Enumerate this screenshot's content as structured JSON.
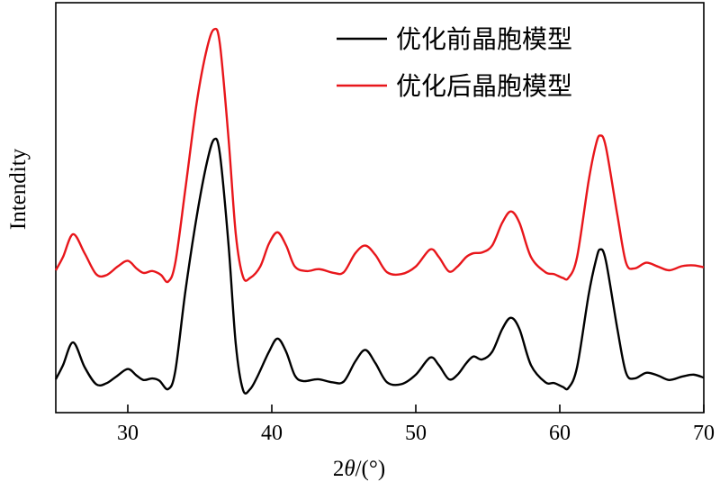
{
  "chart_data": {
    "type": "line",
    "title": "",
    "xlabel_prefix": "2",
    "xlabel_theta": "θ",
    "xlabel_suffix": "/(°)",
    "ylabel": "Intendity",
    "xlim": [
      25,
      70
    ],
    "xticks": [
      30,
      40,
      50,
      60,
      70
    ],
    "y_ticks_shown": false,
    "grid": false,
    "legend_position": "top-right",
    "series": [
      {
        "name": "优化前晶胞模型",
        "color": "#000000",
        "points": [
          [
            25.0,
            8.8
          ],
          [
            25.5,
            12.5
          ],
          [
            26.2,
            18.5
          ],
          [
            27.0,
            12.0
          ],
          [
            27.8,
            7.5
          ],
          [
            28.5,
            7.7
          ],
          [
            29.2,
            9.5
          ],
          [
            30.0,
            11.5
          ],
          [
            30.6,
            9.8
          ],
          [
            31.1,
            8.6
          ],
          [
            31.7,
            9.0
          ],
          [
            32.2,
            8.4
          ],
          [
            32.8,
            6.2
          ],
          [
            33.3,
            11.0
          ],
          [
            34.0,
            32.0
          ],
          [
            34.8,
            52.0
          ],
          [
            35.5,
            66.0
          ],
          [
            36.0,
            72.0
          ],
          [
            36.4,
            68.0
          ],
          [
            37.0,
            44.0
          ],
          [
            37.5,
            18.0
          ],
          [
            38.0,
            6.0
          ],
          [
            38.5,
            6.2
          ],
          [
            39.0,
            9.5
          ],
          [
            39.8,
            16.0
          ],
          [
            40.4,
            19.5
          ],
          [
            41.0,
            16.0
          ],
          [
            41.6,
            9.8
          ],
          [
            42.2,
            8.3
          ],
          [
            43.2,
            8.8
          ],
          [
            44.2,
            8.0
          ],
          [
            45.0,
            8.2
          ],
          [
            45.8,
            13.5
          ],
          [
            46.5,
            16.5
          ],
          [
            47.2,
            13.0
          ],
          [
            48.0,
            8.0
          ],
          [
            49.0,
            7.5
          ],
          [
            50.0,
            10.0
          ],
          [
            51.0,
            14.5
          ],
          [
            51.6,
            12.5
          ],
          [
            52.3,
            8.8
          ],
          [
            52.9,
            10.0
          ],
          [
            53.5,
            13.0
          ],
          [
            54.0,
            14.8
          ],
          [
            54.6,
            14.0
          ],
          [
            55.3,
            16.0
          ],
          [
            56.0,
            22.0
          ],
          [
            56.6,
            25.0
          ],
          [
            57.2,
            22.0
          ],
          [
            58.0,
            12.5
          ],
          [
            59.0,
            8.0
          ],
          [
            59.6,
            7.8
          ],
          [
            60.2,
            6.8
          ],
          [
            60.6,
            6.5
          ],
          [
            61.2,
            12.0
          ],
          [
            62.0,
            31.0
          ],
          [
            62.5,
            40.0
          ],
          [
            62.8,
            43.0
          ],
          [
            63.2,
            40.0
          ],
          [
            64.0,
            22.0
          ],
          [
            64.6,
            10.5
          ],
          [
            65.2,
            9.0
          ],
          [
            66.0,
            10.5
          ],
          [
            66.8,
            9.8
          ],
          [
            67.6,
            8.6
          ],
          [
            68.5,
            9.5
          ],
          [
            69.3,
            10.0
          ],
          [
            70.0,
            9.2
          ]
        ]
      },
      {
        "name": "优化后晶胞模型",
        "color": "#e8161b",
        "points": [
          [
            25.0,
            37.5
          ],
          [
            25.5,
            41.0
          ],
          [
            26.2,
            47.0
          ],
          [
            27.0,
            42.0
          ],
          [
            27.8,
            36.5
          ],
          [
            28.5,
            36.2
          ],
          [
            29.3,
            38.5
          ],
          [
            30.0,
            40.0
          ],
          [
            30.6,
            38.0
          ],
          [
            31.1,
            36.8
          ],
          [
            31.7,
            37.3
          ],
          [
            32.3,
            36.3
          ],
          [
            32.8,
            34.5
          ],
          [
            33.3,
            39.5
          ],
          [
            34.0,
            59.0
          ],
          [
            34.8,
            82.0
          ],
          [
            35.5,
            96.0
          ],
          [
            36.0,
            101.0
          ],
          [
            36.4,
            97.0
          ],
          [
            37.0,
            72.0
          ],
          [
            37.5,
            47.0
          ],
          [
            38.0,
            35.8
          ],
          [
            38.5,
            35.5
          ],
          [
            39.2,
            38.5
          ],
          [
            39.8,
            44.5
          ],
          [
            40.4,
            47.5
          ],
          [
            41.0,
            44.0
          ],
          [
            41.6,
            38.5
          ],
          [
            42.4,
            37.3
          ],
          [
            43.3,
            37.8
          ],
          [
            44.3,
            36.8
          ],
          [
            45.0,
            37.0
          ],
          [
            45.8,
            42.0
          ],
          [
            46.5,
            44.0
          ],
          [
            47.2,
            41.5
          ],
          [
            48.0,
            37.0
          ],
          [
            49.0,
            36.5
          ],
          [
            50.0,
            38.5
          ],
          [
            51.0,
            43.0
          ],
          [
            51.6,
            41.0
          ],
          [
            52.3,
            37.2
          ],
          [
            52.9,
            38.5
          ],
          [
            53.5,
            41.0
          ],
          [
            54.0,
            42.0
          ],
          [
            54.6,
            42.2
          ],
          [
            55.3,
            44.0
          ],
          [
            56.0,
            50.0
          ],
          [
            56.6,
            53.0
          ],
          [
            57.2,
            50.0
          ],
          [
            58.0,
            41.0
          ],
          [
            59.0,
            37.0
          ],
          [
            59.6,
            36.5
          ],
          [
            60.2,
            35.5
          ],
          [
            60.6,
            35.5
          ],
          [
            61.2,
            41.0
          ],
          [
            62.0,
            61.0
          ],
          [
            62.5,
            70.5
          ],
          [
            62.8,
            73.0
          ],
          [
            63.2,
            70.0
          ],
          [
            64.0,
            52.0
          ],
          [
            64.6,
            39.5
          ],
          [
            65.2,
            38.0
          ],
          [
            66.0,
            39.5
          ],
          [
            66.8,
            38.5
          ],
          [
            67.6,
            37.5
          ],
          [
            68.5,
            38.6
          ],
          [
            69.3,
            38.8
          ],
          [
            70.0,
            38.3
          ]
        ]
      }
    ]
  }
}
